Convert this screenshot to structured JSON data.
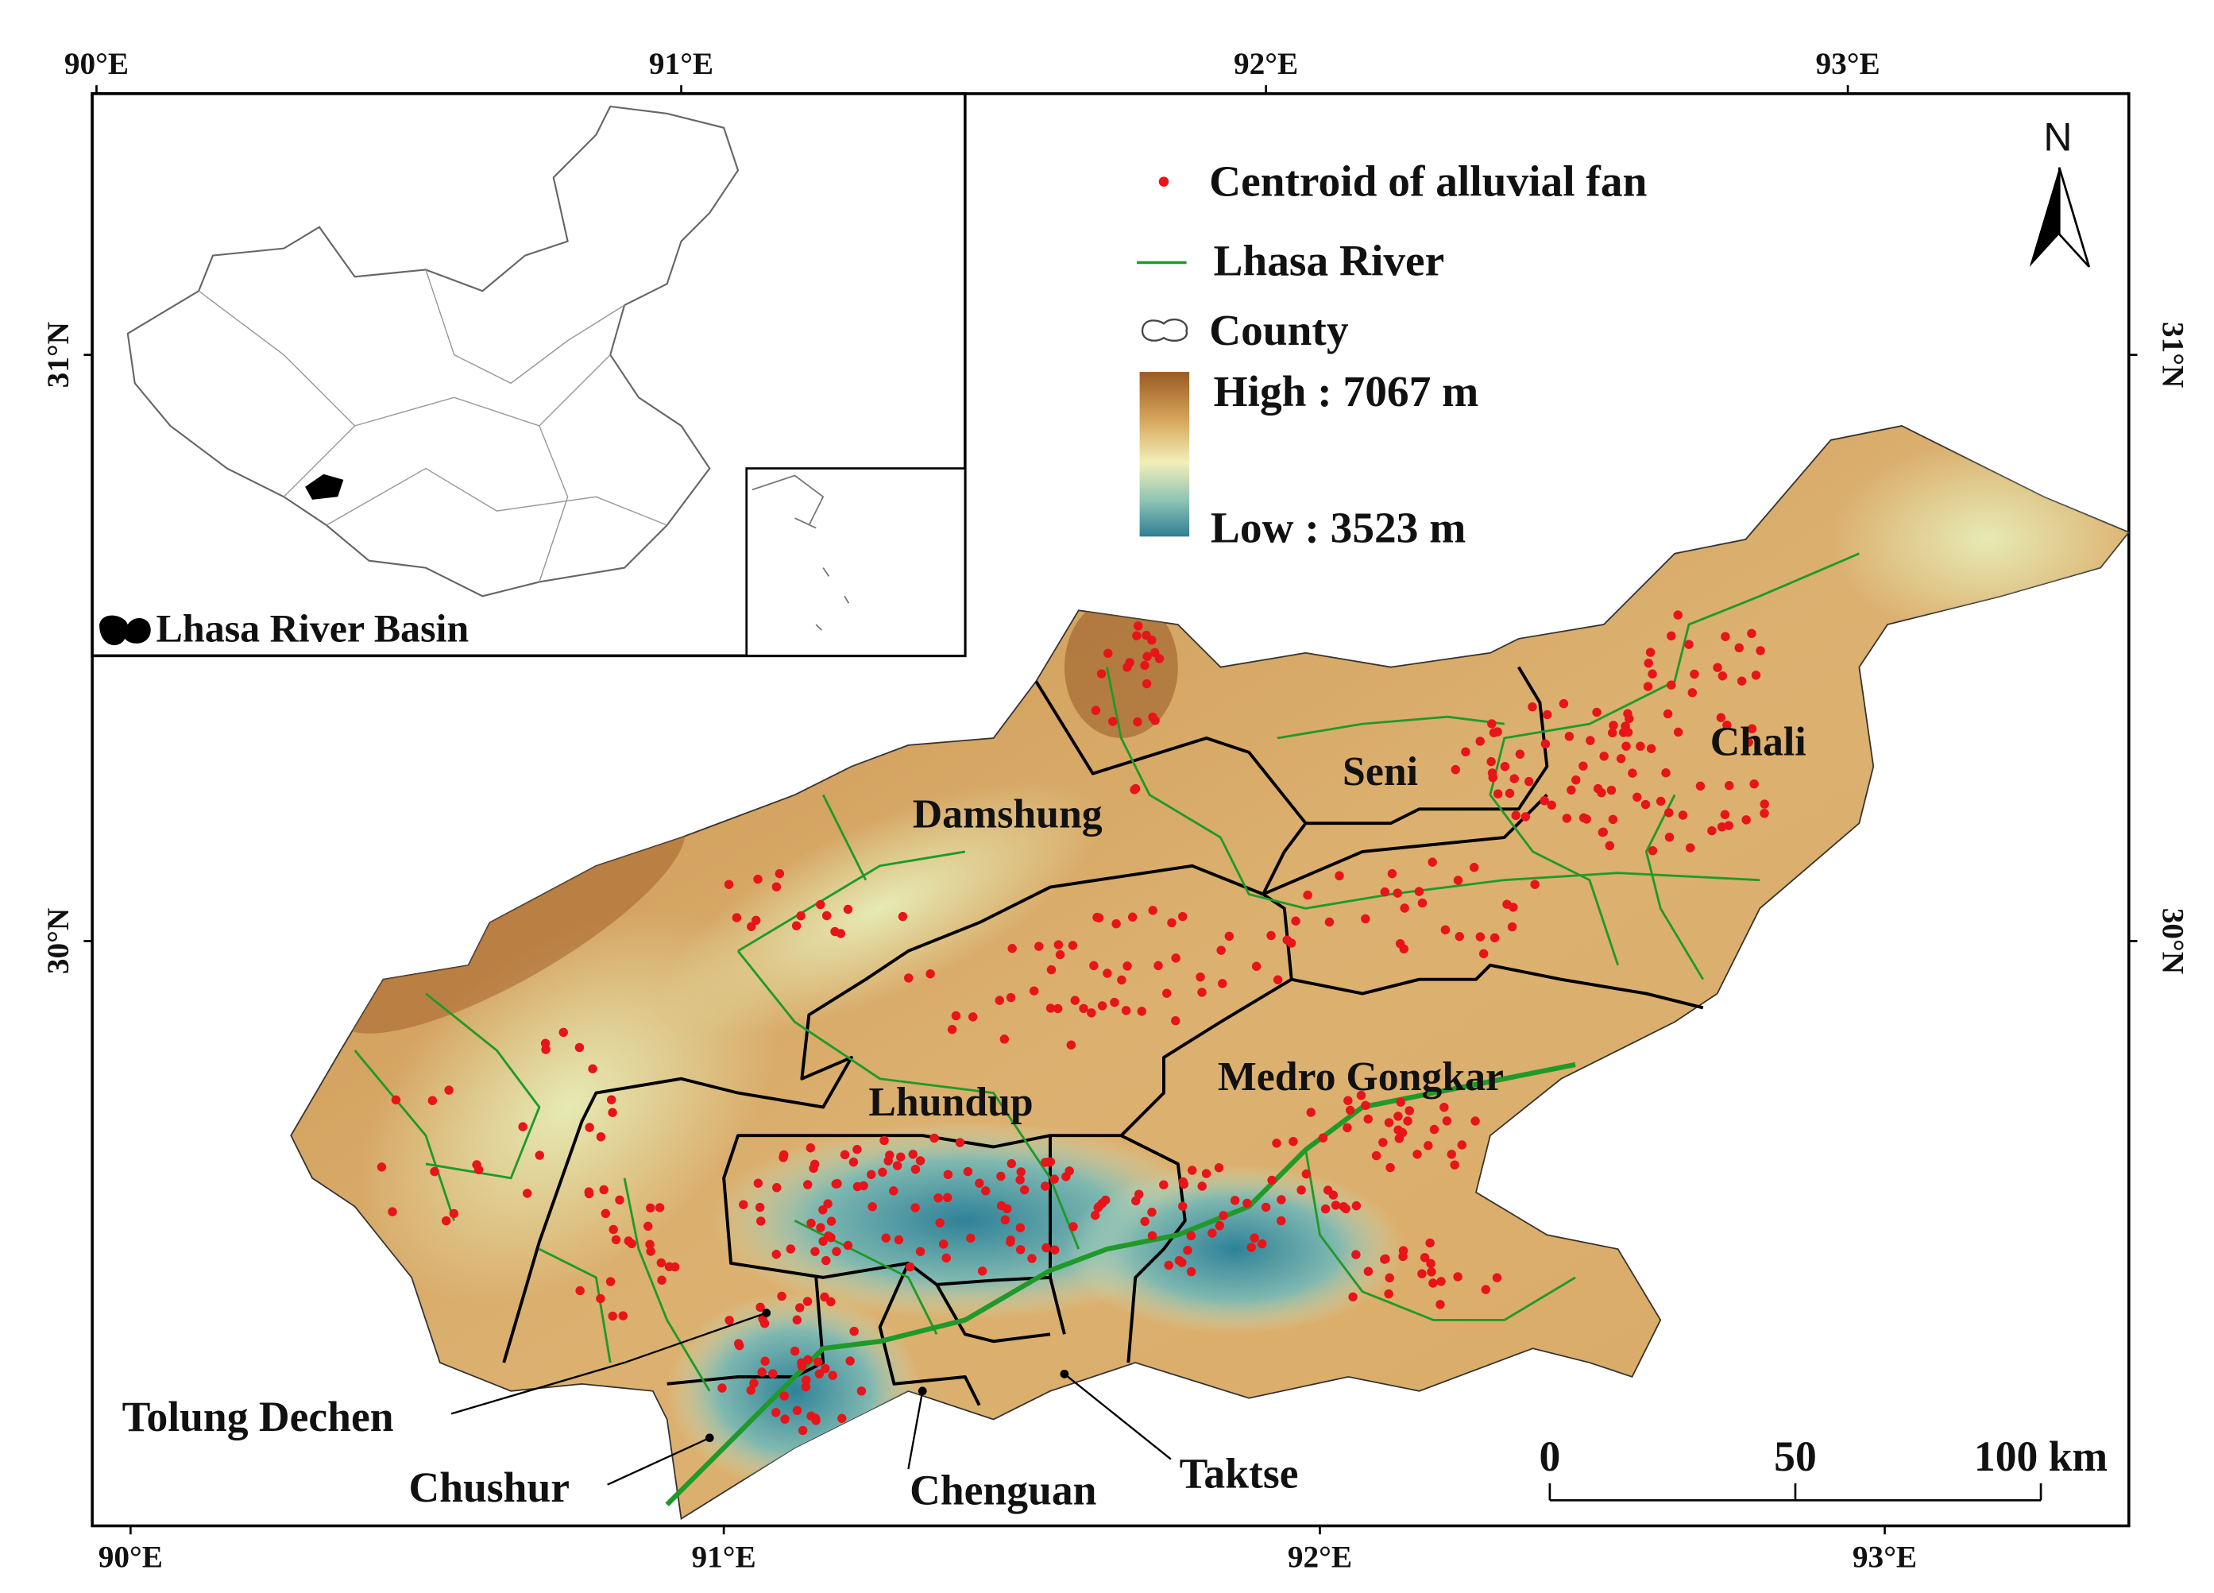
{
  "frame": {
    "top_labels": [
      "90°E",
      "91°E",
      "92°E",
      "93°E"
    ],
    "bottom_labels": [
      "90°E",
      "91°E",
      "92°E",
      "93°E"
    ],
    "left_labels": [
      "31°N",
      "30°N"
    ],
    "right_labels": [
      "31°N",
      "30°N"
    ]
  },
  "legend": {
    "fan": "Centroid of alluvial fan",
    "river": "Lhasa River",
    "county": "County",
    "high": "High : 7067 m",
    "low": "Low : 3523 m"
  },
  "north": "N",
  "inset": {
    "label": "Lhasa River Basin"
  },
  "counties": [
    "Damshung",
    "Seni",
    "Chali",
    "Lhundup",
    "Medro Gongkar"
  ],
  "callouts": [
    "Tolung Dechen",
    "Chushur",
    "Chenguan",
    "Taktse"
  ],
  "scale_bar": [
    "0",
    "50",
    "100 km"
  ]
}
